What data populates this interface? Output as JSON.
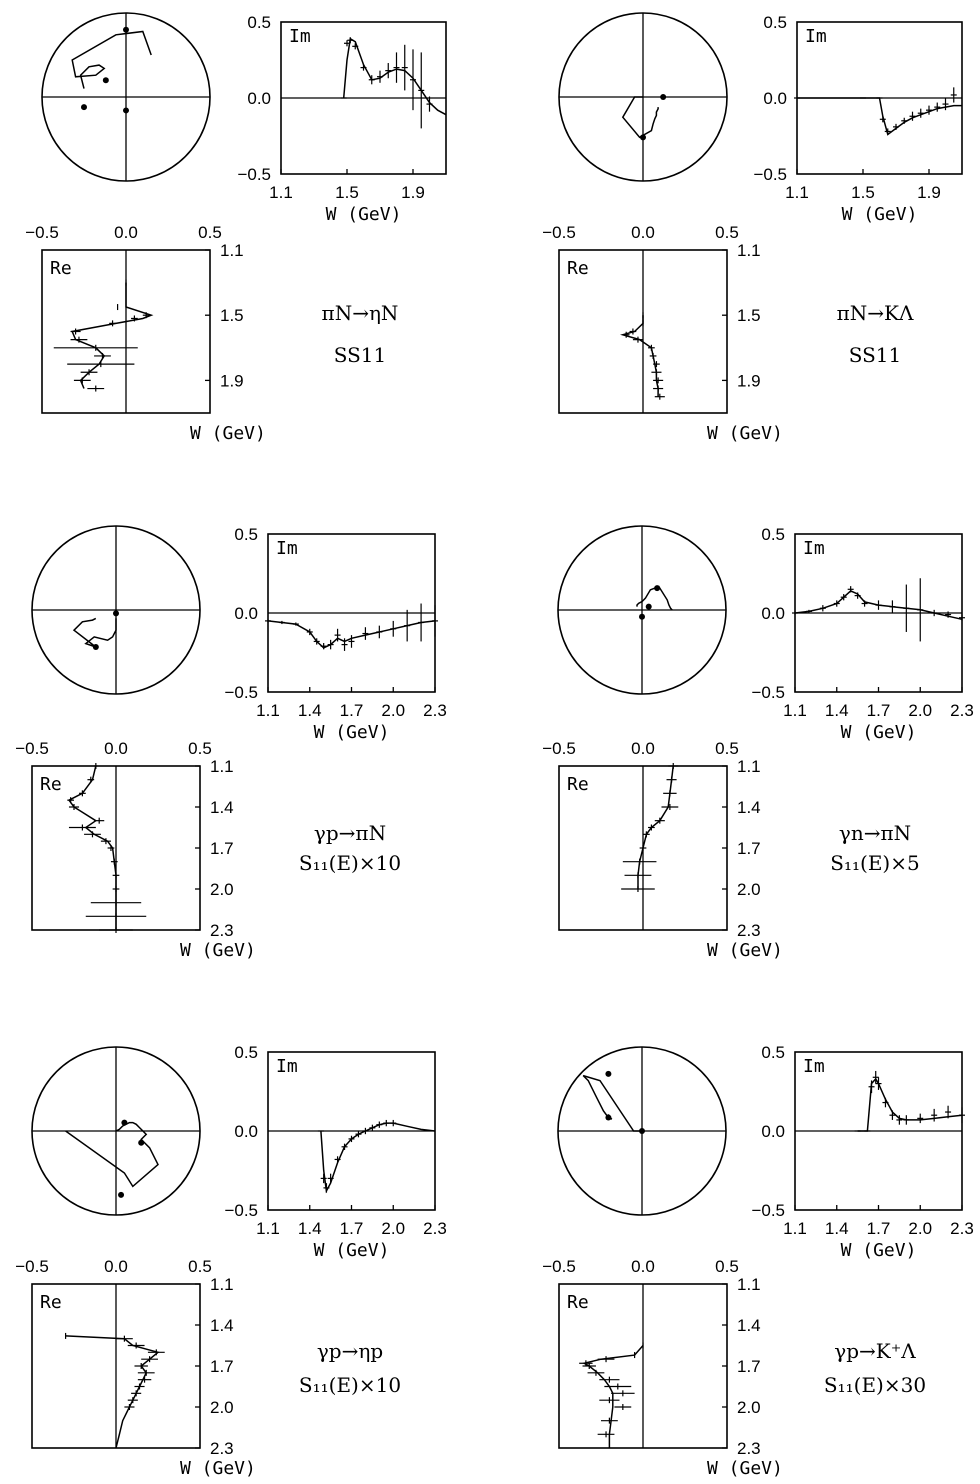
{
  "panels": [
    {
      "reaction": "πN→ηN",
      "wave": "SS11",
      "im_ticks": [
        "0.5",
        "0.0",
        "−0.5"
      ],
      "w_ticks": [
        "1.1",
        "1.5",
        "1.9"
      ],
      "re_ticks": [
        "−0.5",
        "0.0",
        "0.5"
      ],
      "w_axis_label": "W  (GeV)",
      "im_label": "Im",
      "re_label": "Re",
      "chart_data": {
        "type": "scatter",
        "w_range": [
          1.1,
          2.1
        ],
        "amp_range": [
          -0.5,
          0.5
        ],
        "imag": {
          "w": [
            1.48,
            1.5,
            1.52,
            1.55,
            1.6,
            1.65,
            1.7,
            1.75,
            1.8,
            1.85,
            1.9,
            1.95,
            2.0,
            2.05,
            2.1
          ],
          "curve": [
            0.0,
            0.25,
            0.39,
            0.37,
            0.22,
            0.12,
            0.13,
            0.17,
            0.19,
            0.18,
            0.13,
            0.05,
            -0.03,
            -0.08,
            -0.11
          ],
          "points": [
            0.0,
            0.36,
            0.38,
            0.34,
            0.2,
            0.12,
            0.14,
            0.18,
            0.2,
            0.2,
            0.12,
            0.05,
            -0.04
          ],
          "errors": [
            0.0,
            0.02,
            0.02,
            0.02,
            0.02,
            0.03,
            0.04,
            0.05,
            0.1,
            0.15,
            0.2,
            0.25,
            0.05
          ]
        },
        "real": {
          "w": [
            1.3,
            1.45,
            1.5,
            1.52,
            1.55,
            1.6,
            1.65,
            1.7,
            1.75,
            1.8,
            1.85,
            1.9,
            1.95
          ],
          "curve": [
            0.0,
            0.0,
            0.15,
            0.1,
            -0.06,
            -0.32,
            -0.3,
            -0.18,
            -0.13,
            -0.16,
            -0.22,
            -0.27,
            -0.25
          ],
          "points": [
            0.0,
            -0.05,
            0.12,
            0.05,
            -0.08,
            -0.3,
            -0.28,
            -0.18,
            -0.14,
            -0.15,
            -0.22,
            -0.26,
            -0.18
          ],
          "errors": [
            0.0,
            0.0,
            0.02,
            0.02,
            0.02,
            0.03,
            0.05,
            0.25,
            0.05,
            0.2,
            0.05,
            0.05,
            0.05
          ]
        },
        "argand_markers": [
          [
            0.0,
            0.4
          ],
          [
            -0.25,
            -0.06
          ],
          [
            0.0,
            -0.08
          ],
          [
            -0.12,
            0.1
          ]
        ]
      }
    },
    {
      "reaction": "πN→KΛ",
      "wave": "SS11",
      "im_ticks": [
        "0.5",
        "0.0",
        "−0.5"
      ],
      "w_ticks": [
        "1.1",
        "1.5",
        "1.9"
      ],
      "re_ticks": [
        "−0.5",
        "0.0",
        "0.5"
      ],
      "w_axis_label": "W  (GeV)",
      "im_label": "Im",
      "re_label": "Re",
      "chart_data": {
        "type": "scatter",
        "w_range": [
          1.1,
          2.1
        ],
        "amp_range": [
          -0.5,
          0.5
        ],
        "imag": {
          "w": [
            1.1,
            1.5,
            1.6,
            1.62,
            1.65,
            1.7,
            1.75,
            1.8,
            1.85,
            1.9,
            1.95,
            2.0,
            2.05,
            2.1
          ],
          "curve": [
            0.0,
            0.0,
            0.0,
            -0.12,
            -0.24,
            -0.2,
            -0.16,
            -0.13,
            -0.11,
            -0.09,
            -0.07,
            -0.06,
            -0.05,
            -0.05
          ],
          "points": [
            0.0,
            0.0,
            0.0,
            -0.14,
            -0.22,
            -0.19,
            -0.15,
            -0.12,
            -0.1,
            -0.08,
            -0.06,
            -0.04,
            0.02
          ],
          "errors": [
            0.0,
            0.0,
            0.0,
            0.02,
            0.02,
            0.02,
            0.02,
            0.03,
            0.03,
            0.03,
            0.03,
            0.04,
            0.05
          ]
        },
        "real": {
          "w": [
            1.5,
            1.55,
            1.6,
            1.62,
            1.65,
            1.7,
            1.75,
            1.8,
            1.85,
            1.9,
            1.95,
            2.0
          ],
          "curve": [
            0.0,
            0.0,
            -0.05,
            -0.12,
            -0.02,
            0.05,
            0.06,
            0.07,
            0.08,
            0.08,
            0.09,
            0.09
          ],
          "points": [
            0.0,
            0.0,
            -0.06,
            -0.1,
            -0.03,
            0.05,
            0.06,
            0.08,
            0.08,
            0.09,
            0.09,
            0.1
          ],
          "errors": [
            0.0,
            0.0,
            0.02,
            0.02,
            0.03,
            0.02,
            0.02,
            0.02,
            0.03,
            0.03,
            0.03,
            0.03
          ]
        },
        "argand_markers": [
          [
            0.0,
            -0.24
          ],
          [
            0.12,
            0.0
          ]
        ]
      }
    },
    {
      "reaction": "γp→πN",
      "wave": "S₁₁(E)×10",
      "im_ticks": [
        "0.5",
        "0.0",
        "−0.5"
      ],
      "w_ticks": [
        "1.1",
        "1.4",
        "1.7",
        "2.0",
        "2.3"
      ],
      "re_ticks": [
        "−0.5",
        "0.0",
        "0.5"
      ],
      "w_axis_label": "W  (GeV)",
      "im_label": "Im",
      "re_label": "Re",
      "chart_data": {
        "type": "scatter",
        "w_range": [
          1.1,
          2.3
        ],
        "amp_range": [
          -0.5,
          0.5
        ],
        "imag": {
          "w": [
            1.1,
            1.2,
            1.3,
            1.4,
            1.45,
            1.5,
            1.55,
            1.6,
            1.65,
            1.7,
            1.8,
            1.9,
            2.0,
            2.1,
            2.2,
            2.3
          ],
          "curve": [
            -0.05,
            -0.06,
            -0.07,
            -0.12,
            -0.18,
            -0.22,
            -0.2,
            -0.16,
            -0.18,
            -0.16,
            -0.14,
            -0.12,
            -0.1,
            -0.08,
            -0.06,
            -0.05
          ],
          "points": [
            -0.05,
            -0.06,
            -0.07,
            -0.12,
            -0.18,
            -0.21,
            -0.2,
            -0.14,
            -0.2,
            -0.18,
            -0.13,
            -0.12,
            -0.1,
            -0.08,
            -0.06,
            -0.05
          ],
          "errors": [
            0.01,
            0.01,
            0.01,
            0.02,
            0.02,
            0.02,
            0.03,
            0.04,
            0.04,
            0.04,
            0.04,
            0.04,
            0.05,
            0.1,
            0.12,
            0.1
          ]
        },
        "real": {
          "w": [
            1.1,
            1.2,
            1.3,
            1.35,
            1.4,
            1.5,
            1.55,
            1.6,
            1.65,
            1.7,
            1.8,
            1.9,
            2.0,
            2.1,
            2.2,
            2.3
          ],
          "curve": [
            -0.12,
            -0.14,
            -0.2,
            -0.28,
            -0.25,
            -0.12,
            -0.18,
            -0.13,
            -0.05,
            -0.02,
            -0.01,
            0.0,
            0.0,
            0.0,
            0.0,
            0.0
          ],
          "points": [
            -0.12,
            -0.15,
            -0.2,
            -0.27,
            -0.25,
            -0.1,
            -0.2,
            -0.14,
            -0.06,
            -0.03,
            -0.01,
            0.0,
            0.0,
            0.0,
            0.0,
            0.0
          ],
          "errors": [
            0.01,
            0.02,
            0.02,
            0.02,
            0.03,
            0.03,
            0.08,
            0.05,
            0.03,
            0.02,
            0.02,
            0.02,
            0.02,
            0.15,
            0.18,
            0.1
          ]
        },
        "argand_markers": [
          [
            -0.12,
            -0.22
          ],
          [
            0.0,
            -0.02
          ]
        ]
      }
    },
    {
      "reaction": "γn→πN",
      "wave": "S₁₁(E)×5",
      "im_ticks": [
        "0.5",
        "0.0",
        "−0.5"
      ],
      "w_ticks": [
        "1.1",
        "1.4",
        "1.7",
        "2.0",
        "2.3"
      ],
      "re_ticks": [
        "−0.5",
        "0.0",
        "0.5"
      ],
      "w_axis_label": "W  (GeV)",
      "im_label": "Im",
      "re_label": "Re",
      "chart_data": {
        "type": "scatter",
        "w_range": [
          1.1,
          2.3
        ],
        "amp_range": [
          -0.5,
          0.5
        ],
        "imag": {
          "w": [
            1.1,
            1.2,
            1.3,
            1.4,
            1.45,
            1.5,
            1.55,
            1.6,
            1.7,
            1.8,
            1.9,
            2.0,
            2.1,
            2.2,
            2.3
          ],
          "curve": [
            0.0,
            0.01,
            0.03,
            0.06,
            0.1,
            0.14,
            0.12,
            0.07,
            0.05,
            0.04,
            0.03,
            0.02,
            0.0,
            -0.02,
            -0.04
          ],
          "points": [
            0.0,
            0.01,
            0.03,
            0.06,
            0.1,
            0.15,
            0.11,
            0.06,
            0.05,
            0.04,
            0.03,
            0.02,
            0.0,
            -0.01,
            -0.03
          ],
          "errors": [
            0.01,
            0.01,
            0.02,
            0.02,
            0.02,
            0.02,
            0.02,
            0.02,
            0.03,
            0.04,
            0.15,
            0.2,
            0.02,
            0.02,
            0.02
          ]
        },
        "real": {
          "w": [
            1.1,
            1.2,
            1.3,
            1.4,
            1.5,
            1.55,
            1.6,
            1.7,
            1.8,
            1.9,
            2.0
          ],
          "curve": [
            0.18,
            0.17,
            0.16,
            0.15,
            0.1,
            0.05,
            0.02,
            0.0,
            -0.02,
            -0.03,
            -0.03
          ],
          "points": [
            0.18,
            0.17,
            0.16,
            0.16,
            0.1,
            0.05,
            0.02,
            0.0,
            -0.02,
            -0.03,
            -0.03
          ],
          "errors": [
            0.03,
            0.03,
            0.04,
            0.05,
            0.03,
            0.02,
            0.02,
            0.02,
            0.1,
            0.08,
            0.1
          ]
        },
        "argand_markers": [
          [
            0.09,
            0.13
          ],
          [
            0.0,
            -0.04
          ],
          [
            0.04,
            0.02
          ]
        ]
      }
    },
    {
      "reaction": "γp→ηp",
      "wave": "S₁₁(E)×10",
      "im_ticks": [
        "0.5",
        "0.0",
        "−0.5"
      ],
      "w_ticks": [
        "1.1",
        "1.4",
        "1.7",
        "2.0",
        "2.3"
      ],
      "re_ticks": [
        "−0.5",
        "0.0",
        "0.5"
      ],
      "w_axis_label": "W  (GeV)",
      "im_label": "Im",
      "re_label": "Re",
      "chart_data": {
        "type": "scatter",
        "w_range": [
          1.1,
          2.3
        ],
        "amp_range": [
          -0.5,
          0.5
        ],
        "imag": {
          "w": [
            1.48,
            1.5,
            1.52,
            1.55,
            1.6,
            1.65,
            1.7,
            1.75,
            1.8,
            1.85,
            1.9,
            1.95,
            2.0,
            2.1,
            2.2,
            2.3
          ],
          "curve": [
            0.0,
            -0.25,
            -0.38,
            -0.33,
            -0.2,
            -0.1,
            -0.05,
            -0.02,
            0.0,
            0.02,
            0.04,
            0.05,
            0.05,
            0.03,
            0.01,
            0.0
          ],
          "points": [
            0.0,
            -0.3,
            -0.36,
            -0.3,
            -0.18,
            -0.1,
            -0.05,
            -0.02,
            0.0,
            0.02,
            0.04,
            0.05,
            0.05
          ],
          "errors": [
            0.0,
            0.03,
            0.03,
            0.03,
            0.02,
            0.02,
            0.02,
            0.02,
            0.02,
            0.02,
            0.02,
            0.02,
            0.02
          ]
        },
        "real": {
          "w": [
            1.48,
            1.5,
            1.55,
            1.6,
            1.65,
            1.7,
            1.75,
            1.8,
            1.85,
            1.9,
            1.95,
            2.0,
            2.1,
            2.2,
            2.3
          ],
          "curve": [
            -0.3,
            0.05,
            0.1,
            0.25,
            0.2,
            0.15,
            0.18,
            0.16,
            0.14,
            0.12,
            0.1,
            0.08,
            0.04,
            0.02,
            0.0
          ],
          "points": [
            -0.3,
            0.05,
            0.12,
            0.24,
            0.2,
            0.15,
            0.18,
            0.17,
            0.14,
            0.12,
            0.1,
            0.08
          ],
          "errors": [
            0.0,
            0.05,
            0.05,
            0.05,
            0.05,
            0.04,
            0.05,
            0.04,
            0.03,
            0.03,
            0.03,
            0.03
          ]
        },
        "argand_markers": [
          [
            0.05,
            0.05
          ],
          [
            0.15,
            -0.07
          ],
          [
            0.03,
            -0.38
          ]
        ]
      }
    },
    {
      "reaction": "γp→K⁺Λ",
      "wave": "S₁₁(E)×30",
      "im_ticks": [
        "0.5",
        "0.0",
        "−0.5"
      ],
      "w_ticks": [
        "1.1",
        "1.4",
        "1.7",
        "2.0",
        "2.3"
      ],
      "re_ticks": [
        "−0.5",
        "0.0",
        "0.5"
      ],
      "w_axis_label": "W  (GeV)",
      "im_label": "Im",
      "re_label": "Re",
      "chart_data": {
        "type": "scatter",
        "w_range": [
          1.1,
          2.3
        ],
        "amp_range": [
          -0.5,
          0.5
        ],
        "imag": {
          "w": [
            1.55,
            1.62,
            1.65,
            1.68,
            1.7,
            1.75,
            1.8,
            1.85,
            1.9,
            2.0,
            2.1,
            2.2,
            2.3
          ],
          "curve": [
            0.0,
            0.0,
            0.3,
            0.33,
            0.3,
            0.2,
            0.12,
            0.08,
            0.07,
            0.07,
            0.08,
            0.09,
            0.1
          ],
          "points": [
            0.0,
            0.0,
            0.28,
            0.34,
            0.3,
            0.18,
            0.1,
            0.07,
            0.07,
            0.08,
            0.1,
            0.12,
            0.1
          ],
          "errors": [
            0.0,
            0.0,
            0.04,
            0.04,
            0.04,
            0.03,
            0.03,
            0.03,
            0.03,
            0.03,
            0.04,
            0.04,
            0.05
          ]
        },
        "real": {
          "w": [
            1.55,
            1.62,
            1.65,
            1.68,
            1.7,
            1.75,
            1.8,
            1.85,
            1.9,
            1.95,
            2.0,
            2.1,
            2.2,
            2.3
          ],
          "curve": [
            0.0,
            -0.05,
            -0.25,
            -0.35,
            -0.32,
            -0.27,
            -0.23,
            -0.2,
            -0.18,
            -0.18,
            -0.18,
            -0.19,
            -0.2,
            -0.2
          ],
          "points": [
            0.0,
            -0.05,
            -0.22,
            -0.34,
            -0.32,
            -0.28,
            -0.2,
            -0.15,
            -0.12,
            -0.2,
            -0.12,
            -0.2,
            -0.22
          ],
          "errors": [
            0.0,
            0.0,
            0.05,
            0.04,
            0.04,
            0.05,
            0.06,
            0.08,
            0.07,
            0.06,
            0.05,
            0.05,
            0.05
          ]
        },
        "argand_markers": [
          [
            -0.2,
            0.34
          ],
          [
            0.0,
            0.0
          ],
          [
            -0.2,
            0.08
          ]
        ]
      }
    }
  ]
}
